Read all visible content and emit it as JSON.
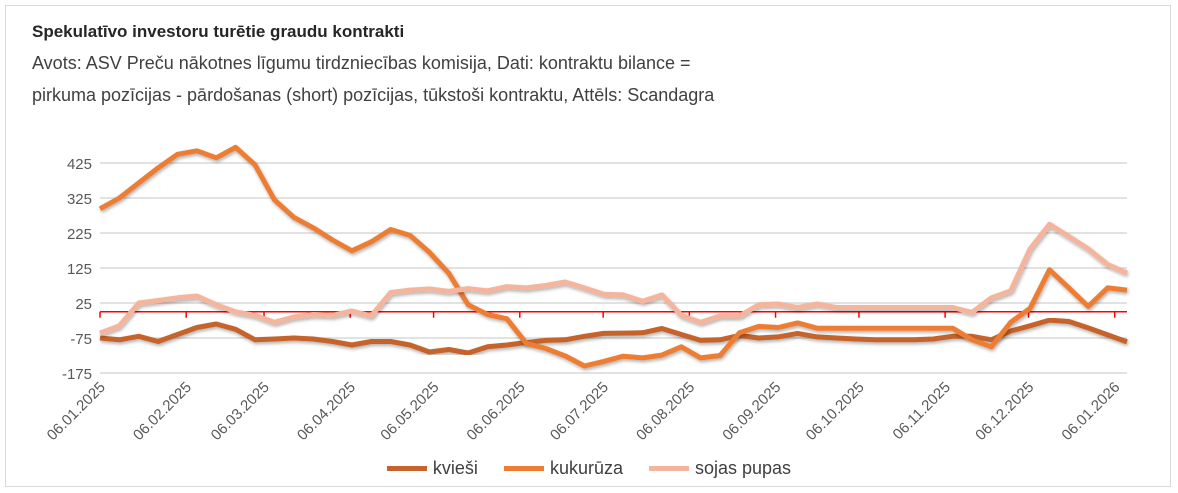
{
  "chart_data": {
    "type": "line",
    "title": "Spekulatīvo investoru turētie graudu kontrakti",
    "subtitle_lines": [
      "Avots: ASV Preču nākotnes līgumu tirdzniecības komisija, Dati: kontraktu bilance =",
      "pirkuma pozīcijas - pārdošanas (short) pozīcijas, tūkstoši kontraktu, Attēls: Scandagra"
    ],
    "xlabel": "",
    "ylabel": "",
    "x_start": "06.01.2025",
    "x_step_days": 7,
    "x_tick_labels": [
      "06.01.2025",
      "06.02.2025",
      "06.03.2025",
      "06.04.2025",
      "06.05.2025",
      "06.06.2025",
      "06.07.2025",
      "06.08.2025",
      "06.09.2025",
      "06.10.2025",
      "06.11.2025",
      "06.12.2025",
      "06.01.2026"
    ],
    "x_tick_days": [
      0,
      31,
      59,
      90,
      120,
      151,
      181,
      212,
      243,
      273,
      304,
      334,
      365
    ],
    "y_ticks": [
      425,
      325,
      225,
      125,
      25,
      -75,
      -175
    ],
    "y_tick_labels": [
      "425",
      "325",
      "225",
      "125",
      "25",
      "-75",
      "-175"
    ],
    "ylim": [
      -175,
      460
    ],
    "grid": true,
    "legend_position": "bottom",
    "zero_line_color": "#ff0000",
    "series": [
      {
        "name": "kvieši",
        "color": "#c5632b",
        "values": [
          -75,
          -80,
          -70,
          -85,
          -65,
          -45,
          -35,
          -50,
          -80,
          -78,
          -75,
          -78,
          -85,
          -95,
          -85,
          -85,
          -95,
          -115,
          -108,
          -118,
          -100,
          -95,
          -88,
          -82,
          -80,
          -70,
          -62,
          -61,
          -60,
          -48,
          -65,
          -82,
          -80,
          -68,
          -75,
          -72,
          -62,
          -72,
          -75,
          -78,
          -80,
          -80,
          -80,
          -78,
          -70,
          -70,
          -80,
          -55,
          -40,
          -24,
          -28,
          -46,
          -66,
          -86
        ]
      },
      {
        "name": "kukurūza",
        "color": "#ed7d31",
        "values": [
          294,
          325,
          368,
          411,
          450,
          460,
          440,
          470,
          420,
          320,
          270,
          240,
          205,
          174,
          200,
          235,
          218,
          170,
          110,
          20,
          -8,
          -20,
          -90,
          -105,
          -126,
          -155,
          -142,
          -127,
          -132,
          -124,
          -100,
          -132,
          -125,
          -60,
          -42,
          -45,
          -32,
          -47,
          -47,
          -47,
          -47,
          -47,
          -47,
          -47,
          -47,
          -80,
          -100,
          -30,
          10,
          120,
          68,
          15,
          68,
          62
        ]
      },
      {
        "name": "sojas pupas",
        "color": "#f4b59c",
        "values": [
          -61,
          -40,
          25,
          32,
          40,
          45,
          20,
          0,
          -10,
          -30,
          -15,
          -8,
          -10,
          2,
          -12,
          55,
          62,
          65,
          58,
          66,
          60,
          72,
          68,
          75,
          85,
          68,
          50,
          48,
          30,
          48,
          -10,
          -30,
          -12,
          -12,
          20,
          22,
          12,
          22,
          12,
          12,
          12,
          12,
          12,
          12,
          12,
          -2,
          40,
          60,
          180,
          250,
          215,
          180,
          135,
          111
        ]
      }
    ]
  }
}
